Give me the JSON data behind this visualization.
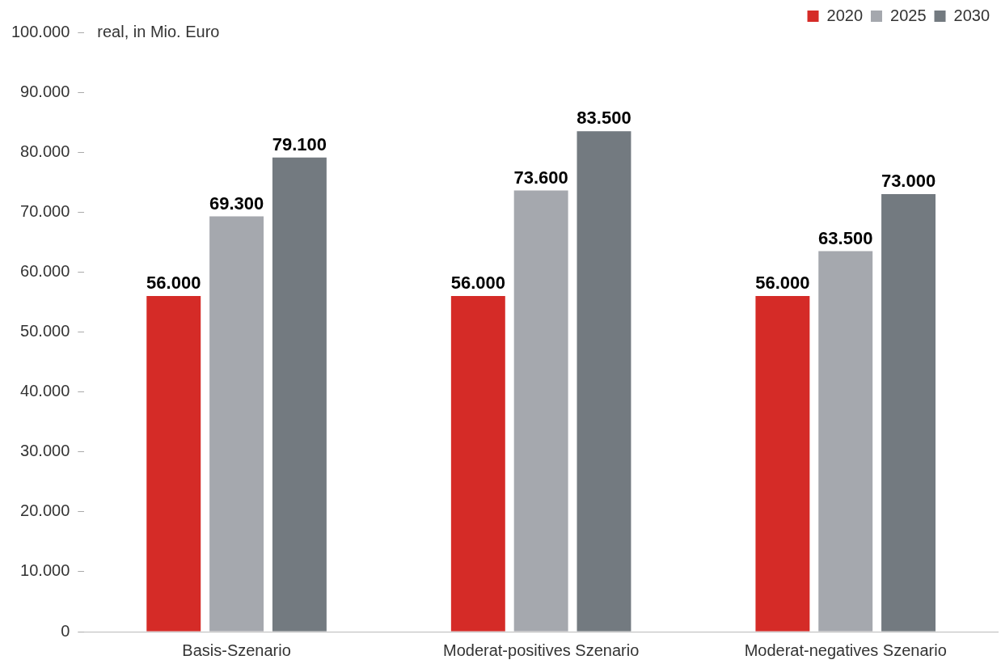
{
  "chart_data": {
    "type": "bar",
    "ylabel": "real, in Mio. Euro",
    "categories": [
      "Basis-Szenario",
      "Moderat-positives Szenario",
      "Moderat-negatives Szenario"
    ],
    "series": [
      {
        "name": "2020",
        "color": "#d52b27",
        "values": [
          56000,
          56000,
          56000
        ],
        "value_labels": [
          "56.000",
          "56.000",
          "56.000"
        ]
      },
      {
        "name": "2025",
        "color": "#a5a8ae",
        "values": [
          69300,
          73600,
          63500
        ],
        "value_labels": [
          "69.300",
          "73.600",
          "63.500"
        ]
      },
      {
        "name": "2030",
        "color": "#737a80",
        "values": [
          79100,
          83500,
          73000
        ],
        "value_labels": [
          "79.100",
          "83.500",
          "73.000"
        ]
      }
    ],
    "ylim": [
      0,
      100000
    ],
    "yticks": [
      {
        "value": 0,
        "label": "0"
      },
      {
        "value": 10000,
        "label": "10.000"
      },
      {
        "value": 20000,
        "label": "20.000"
      },
      {
        "value": 30000,
        "label": "30.000"
      },
      {
        "value": 40000,
        "label": "40.000"
      },
      {
        "value": 50000,
        "label": "50.000"
      },
      {
        "value": 60000,
        "label": "60.000"
      },
      {
        "value": 70000,
        "label": "70.000"
      },
      {
        "value": 80000,
        "label": "80.000"
      },
      {
        "value": 90000,
        "label": "90.000"
      },
      {
        "value": 100000,
        "label": "100.000"
      }
    ],
    "grid": false,
    "legend": "top right"
  }
}
